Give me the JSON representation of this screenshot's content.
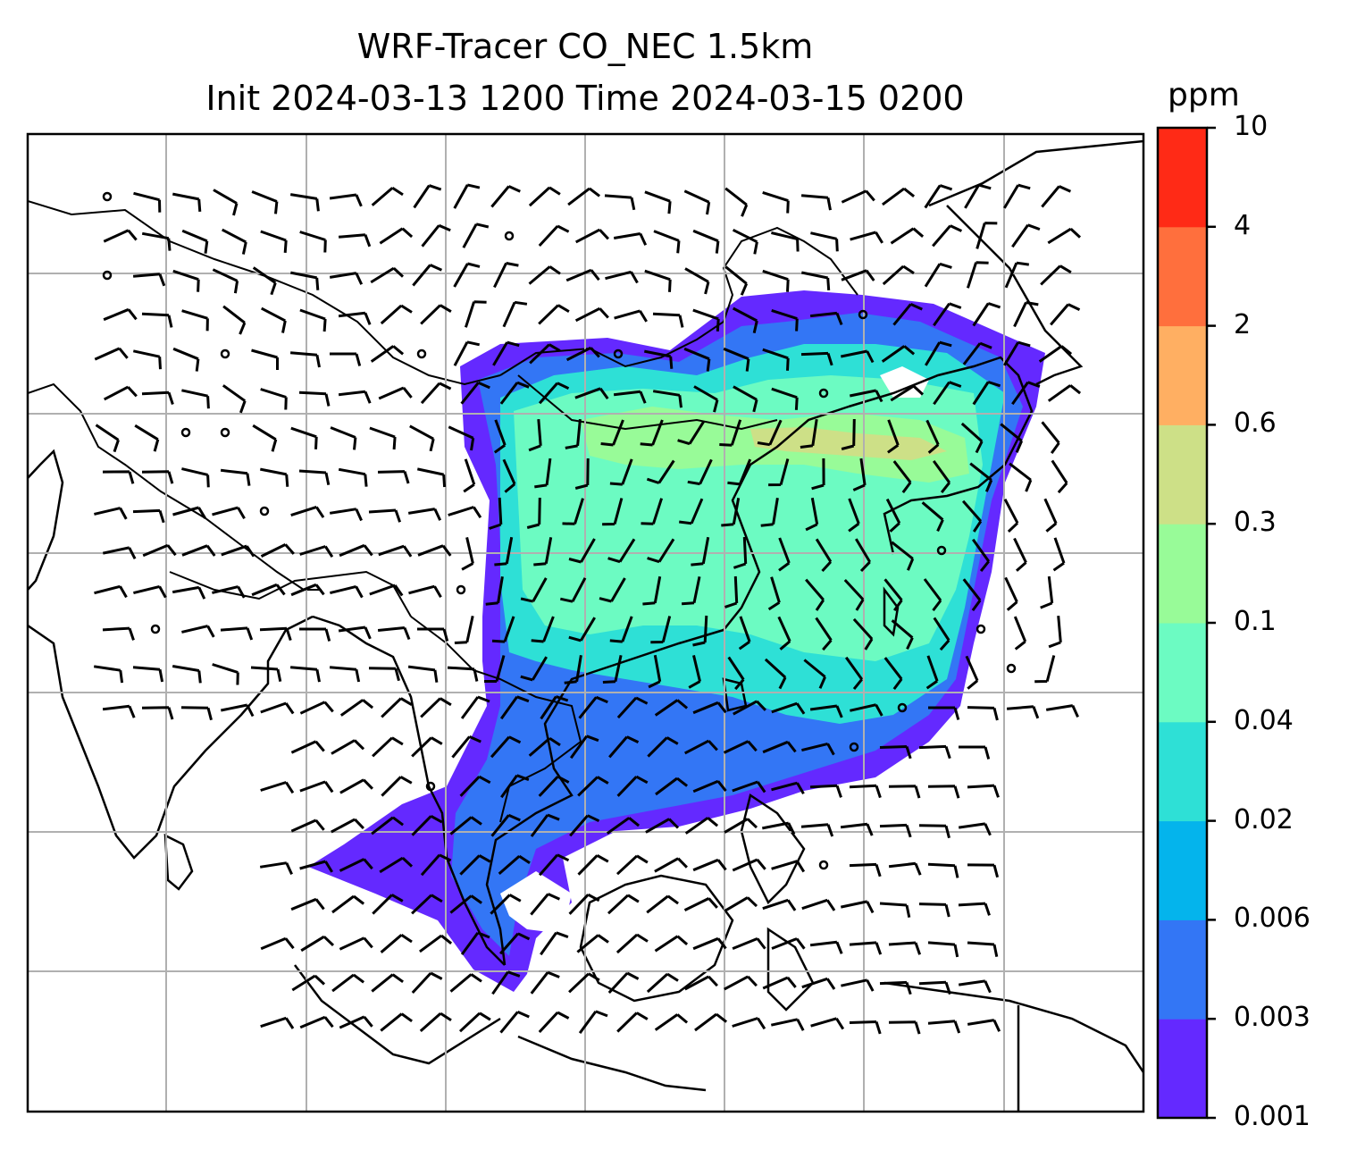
{
  "figure": {
    "title_line1": "WRF-Tracer CO_NEC 1.5km",
    "title_line2": "Init 2024-03-13 1200 Time 2024-03-15 0200"
  },
  "colorbar": {
    "unit": "ppm",
    "levels": [
      "0.001",
      "0.003",
      "0.006",
      "0.02",
      "0.04",
      "0.1",
      "0.3",
      "0.6",
      "2",
      "4",
      "10"
    ],
    "colors": [
      "#6429ff",
      "#3376f5",
      "#04b4ec",
      "#2ee0d6",
      "#6cfbc2",
      "#98fb98",
      "#cde087",
      "#ffaf62",
      "#ff6f3d",
      "#ff2a16"
    ]
  },
  "map": {
    "gridlines": true,
    "field": "CO_NEC tracer concentration",
    "wind_barbs": true
  }
}
